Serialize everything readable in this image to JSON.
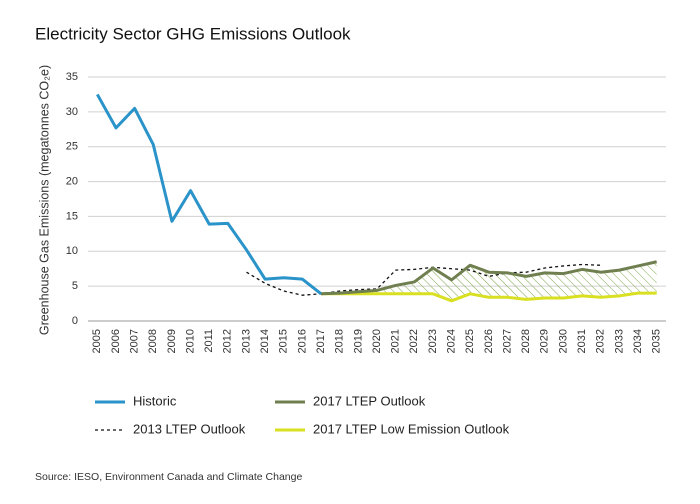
{
  "chart_data": {
    "type": "line",
    "title": "Electricity Sector GHG Emissions Outlook",
    "y_label": "Greenhouse Gas Emissions (megatonnes CO₂e)",
    "source": "Source: IESO, Environment Canada and Climate Change",
    "categories": [
      "2005",
      "2006",
      "2007",
      "2008",
      "2009",
      "2010",
      "2011",
      "2012",
      "2013",
      "2014",
      "2015",
      "2016",
      "2017",
      "2018",
      "2019",
      "2020",
      "2021",
      "2022",
      "2023",
      "2024",
      "2025",
      "2026",
      "2027",
      "2028",
      "2029",
      "2030",
      "2031",
      "2032",
      "2033",
      "2034",
      "2035"
    ],
    "series": [
      {
        "name": "Historic",
        "color": "#2a93c9",
        "style": "solid",
        "values": [
          32.5,
          27.7,
          30.5,
          25.3,
          14.3,
          18.7,
          13.9,
          14.0,
          10.2,
          6.0,
          6.2,
          6.0,
          3.9,
          null,
          null,
          null,
          null,
          null,
          null,
          null,
          null,
          null,
          null,
          null,
          null,
          null,
          null,
          null,
          null,
          null,
          null
        ]
      },
      {
        "name": "2017 LTEP Outlook",
        "color": "#6f7f4f",
        "style": "solid",
        "values": [
          null,
          null,
          null,
          null,
          null,
          null,
          null,
          null,
          null,
          null,
          null,
          null,
          3.9,
          4.0,
          4.2,
          4.4,
          5.1,
          5.6,
          7.6,
          5.9,
          8.0,
          7.0,
          6.9,
          6.4,
          6.9,
          6.8,
          7.4,
          7.0,
          7.3,
          7.9,
          8.5
        ]
      },
      {
        "name": "2013 LTEP Outlook",
        "color": "#111111",
        "style": "dashed",
        "values": [
          null,
          null,
          null,
          null,
          null,
          null,
          null,
          null,
          7.0,
          5.4,
          4.3,
          3.7,
          3.9,
          4.3,
          4.5,
          4.6,
          7.3,
          7.4,
          7.7,
          7.5,
          7.3,
          6.4,
          6.9,
          7.0,
          7.6,
          7.9,
          8.1,
          8.0,
          null,
          null,
          null
        ]
      },
      {
        "name": "2017 LTEP Low Emission Outlook",
        "color": "#d9e021",
        "style": "solid",
        "values": [
          null,
          null,
          null,
          null,
          null,
          null,
          null,
          null,
          null,
          null,
          null,
          null,
          3.9,
          3.9,
          3.9,
          3.9,
          3.9,
          3.9,
          3.9,
          2.9,
          3.9,
          3.4,
          3.4,
          3.1,
          3.3,
          3.3,
          3.6,
          3.4,
          3.6,
          4.0,
          4.0
        ]
      }
    ],
    "hatch_between": [
      1,
      3
    ],
    "ylim": [
      0,
      35
    ],
    "yticks": [
      0,
      5,
      10,
      15,
      20,
      25,
      30,
      35
    ],
    "grid": true
  }
}
